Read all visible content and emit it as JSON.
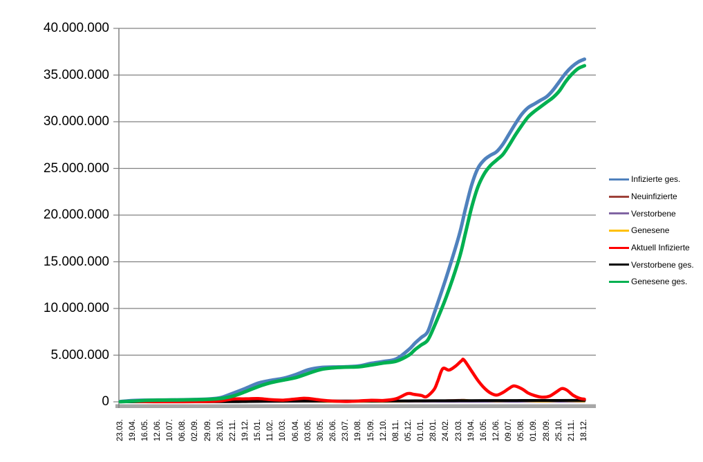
{
  "chart_data": {
    "type": "line",
    "title": "",
    "xlabel": "",
    "ylabel": "",
    "values_unit": "millions",
    "ylim": [
      0,
      40000000
    ],
    "y_tick_step": 5000000,
    "grid": true,
    "legend_position": "right",
    "y_tick_labels": [
      "40.000.000",
      "35.000.000",
      "30.000.000",
      "25.000.000",
      "20.000.000",
      "15.000.000",
      "10.000.000",
      "5.000.000",
      "0"
    ],
    "x_tick_labels": [
      "23.03.",
      "19.04.",
      "16.05.",
      "12.06.",
      "10.07.",
      "06.08.",
      "02.09.",
      "29.09.",
      "26.10.",
      "22.11.",
      "19.12.",
      "15.01.",
      "11.02.",
      "10.03.",
      "06.04.",
      "03.05.",
      "30.05.",
      "26.06.",
      "23.07.",
      "19.08.",
      "15.09.",
      "12.10.",
      "08.11.",
      "05.12.",
      "01.01.",
      "28.01.",
      "24.02.",
      "23.03.",
      "19.04.",
      "16.05.",
      "12.06.",
      "09.07.",
      "05.08.",
      "01.09.",
      "28.09.",
      "25.10.",
      "21.11.",
      "18.12."
    ],
    "series": [
      {
        "name": "Infizierte ges.",
        "color": "#4F81BD",
        "width": 5,
        "points": [
          [
            0,
            0.03
          ],
          [
            1,
            0.14
          ],
          [
            2,
            0.18
          ],
          [
            3,
            0.19
          ],
          [
            4,
            0.2
          ],
          [
            5,
            0.22
          ],
          [
            6,
            0.25
          ],
          [
            7,
            0.3
          ],
          [
            8,
            0.45
          ],
          [
            9,
            0.93
          ],
          [
            10,
            1.45
          ],
          [
            11,
            2.01
          ],
          [
            12,
            2.3
          ],
          [
            13,
            2.52
          ],
          [
            14,
            2.93
          ],
          [
            15,
            3.44
          ],
          [
            16,
            3.68
          ],
          [
            17,
            3.73
          ],
          [
            18,
            3.76
          ],
          [
            19,
            3.84
          ],
          [
            20,
            4.12
          ],
          [
            21,
            4.33
          ],
          [
            22,
            4.6
          ],
          [
            23,
            5.6
          ],
          [
            23.5,
            6.3
          ],
          [
            24,
            6.9
          ],
          [
            24.5,
            7.5
          ],
          [
            25,
            9.4
          ],
          [
            26,
            13.4
          ],
          [
            27,
            17.8
          ],
          [
            27.5,
            20.6
          ],
          [
            28,
            23.2
          ],
          [
            28.5,
            25.0
          ],
          [
            29,
            25.9
          ],
          [
            29.5,
            26.4
          ],
          [
            30,
            26.8
          ],
          [
            30.5,
            27.6
          ],
          [
            31,
            28.7
          ],
          [
            31.5,
            29.8
          ],
          [
            32,
            30.8
          ],
          [
            32.5,
            31.5
          ],
          [
            33,
            31.9
          ],
          [
            33.5,
            32.3
          ],
          [
            34,
            32.7
          ],
          [
            34.5,
            33.4
          ],
          [
            35,
            34.3
          ],
          [
            35.5,
            35.2
          ],
          [
            36,
            35.9
          ],
          [
            36.5,
            36.4
          ],
          [
            37,
            36.7
          ]
        ]
      },
      {
        "name": "Neuinfizierte",
        "color": "#9E4139",
        "width": 2.5,
        "points": [
          [
            0,
            0.004
          ],
          [
            1,
            0.004
          ],
          [
            2,
            0.001
          ],
          [
            3,
            0.001
          ],
          [
            4,
            0.001
          ],
          [
            5,
            0.001
          ],
          [
            6,
            0.002
          ],
          [
            7,
            0.005
          ],
          [
            8,
            0.015
          ],
          [
            9,
            0.022
          ],
          [
            10,
            0.027
          ],
          [
            11,
            0.02
          ],
          [
            12,
            0.01
          ],
          [
            13,
            0.012
          ],
          [
            14,
            0.02
          ],
          [
            15,
            0.018
          ],
          [
            16,
            0.007
          ],
          [
            17,
            0.002
          ],
          [
            18,
            0.002
          ],
          [
            19,
            0.005
          ],
          [
            20,
            0.01
          ],
          [
            21,
            0.009
          ],
          [
            22,
            0.03
          ],
          [
            23,
            0.06
          ],
          [
            24,
            0.045
          ],
          [
            25,
            0.1
          ],
          [
            26,
            0.18
          ],
          [
            27,
            0.21
          ],
          [
            27.4,
            0.22
          ],
          [
            28,
            0.14
          ],
          [
            29,
            0.07
          ],
          [
            30,
            0.05
          ],
          [
            31,
            0.1
          ],
          [
            32,
            0.07
          ],
          [
            33,
            0.04
          ],
          [
            34,
            0.05
          ],
          [
            35,
            0.08
          ],
          [
            36,
            0.04
          ],
          [
            37,
            0.025
          ]
        ]
      },
      {
        "name": "Verstorbene",
        "color": "#8064A2",
        "width": 2.5,
        "points": [
          [
            0,
            0.0
          ],
          [
            10,
            0.003
          ],
          [
            12,
            0.004
          ],
          [
            14,
            0.002
          ],
          [
            20,
            0.001
          ],
          [
            23,
            0.002
          ],
          [
            25,
            0.002
          ],
          [
            30,
            0.001
          ],
          [
            35,
            0.001
          ],
          [
            37,
            0.001
          ]
        ]
      },
      {
        "name": "Genesene",
        "color": "#FFC000",
        "width": 2.5,
        "points": [
          [
            0,
            0.002
          ],
          [
            1,
            0.005
          ],
          [
            2,
            0.006
          ],
          [
            3,
            0.002
          ],
          [
            4,
            0.001
          ],
          [
            5,
            0.002
          ],
          [
            6,
            0.003
          ],
          [
            7,
            0.005
          ],
          [
            8,
            0.01
          ],
          [
            9,
            0.022
          ],
          [
            10,
            0.025
          ],
          [
            11,
            0.026
          ],
          [
            12,
            0.015
          ],
          [
            13,
            0.012
          ],
          [
            14,
            0.02
          ],
          [
            15,
            0.022
          ],
          [
            16,
            0.012
          ],
          [
            17,
            0.004
          ],
          [
            18,
            0.002
          ],
          [
            19,
            0.004
          ],
          [
            20,
            0.009
          ],
          [
            21,
            0.01
          ],
          [
            22,
            0.02
          ],
          [
            23,
            0.045
          ],
          [
            24,
            0.05
          ],
          [
            25,
            0.07
          ],
          [
            26,
            0.14
          ],
          [
            27,
            0.17
          ],
          [
            27.5,
            0.19
          ],
          [
            28,
            0.16
          ],
          [
            28.5,
            0.13
          ],
          [
            29,
            0.1
          ],
          [
            30,
            0.06
          ],
          [
            31,
            0.09
          ],
          [
            31.5,
            0.1
          ],
          [
            32,
            0.09
          ],
          [
            33,
            0.05
          ],
          [
            34,
            0.04
          ],
          [
            35,
            0.09
          ],
          [
            36,
            0.07
          ],
          [
            37,
            0.04
          ]
        ]
      },
      {
        "name": "Aktuell Infizierte",
        "color": "#FF0000",
        "width": 4.5,
        "points": [
          [
            0,
            0.01
          ],
          [
            0.6,
            0.06
          ],
          [
            1,
            0.05
          ],
          [
            1.5,
            0.03
          ],
          [
            2,
            0.02
          ],
          [
            3,
            0.01
          ],
          [
            4,
            0.01
          ],
          [
            5,
            0.01
          ],
          [
            6,
            0.02
          ],
          [
            7,
            0.04
          ],
          [
            8,
            0.1
          ],
          [
            9,
            0.3
          ],
          [
            10,
            0.32
          ],
          [
            11,
            0.35
          ],
          [
            12,
            0.23
          ],
          [
            13,
            0.18
          ],
          [
            14,
            0.31
          ],
          [
            14.6,
            0.38
          ],
          [
            15,
            0.36
          ],
          [
            16,
            0.19
          ],
          [
            17,
            0.08
          ],
          [
            18,
            0.04
          ],
          [
            19,
            0.09
          ],
          [
            20,
            0.17
          ],
          [
            21,
            0.15
          ],
          [
            22,
            0.34
          ],
          [
            22.9,
            0.88
          ],
          [
            23.4,
            0.8
          ],
          [
            24,
            0.68
          ],
          [
            24.4,
            0.55
          ],
          [
            25,
            1.3
          ],
          [
            25.3,
            2.2
          ],
          [
            25.7,
            3.55
          ],
          [
            26.2,
            3.4
          ],
          [
            26.7,
            3.8
          ],
          [
            27.2,
            4.4
          ],
          [
            27.4,
            4.48
          ],
          [
            28,
            3.3
          ],
          [
            28.5,
            2.3
          ],
          [
            29,
            1.5
          ],
          [
            29.5,
            0.95
          ],
          [
            30,
            0.72
          ],
          [
            30.5,
            1.0
          ],
          [
            31,
            1.45
          ],
          [
            31.4,
            1.7
          ],
          [
            32,
            1.4
          ],
          [
            32.5,
            0.95
          ],
          [
            33,
            0.68
          ],
          [
            33.6,
            0.5
          ],
          [
            34.2,
            0.6
          ],
          [
            34.8,
            1.1
          ],
          [
            35.2,
            1.42
          ],
          [
            35.6,
            1.25
          ],
          [
            36.1,
            0.7
          ],
          [
            36.6,
            0.38
          ],
          [
            37,
            0.28
          ]
        ]
      },
      {
        "name": "Verstorbene ges.",
        "color": "#000000",
        "width": 4,
        "points": [
          [
            0,
            0.0
          ],
          [
            6,
            0.01
          ],
          [
            9,
            0.015
          ],
          [
            10,
            0.03
          ],
          [
            11,
            0.045
          ],
          [
            12,
            0.063
          ],
          [
            13,
            0.072
          ],
          [
            14,
            0.077
          ],
          [
            15,
            0.083
          ],
          [
            16,
            0.088
          ],
          [
            18,
            0.091
          ],
          [
            20,
            0.093
          ],
          [
            21,
            0.095
          ],
          [
            22,
            0.097
          ],
          [
            23,
            0.103
          ],
          [
            24,
            0.112
          ],
          [
            25,
            0.118
          ],
          [
            26,
            0.122
          ],
          [
            27,
            0.127
          ],
          [
            28,
            0.132
          ],
          [
            29,
            0.136
          ],
          [
            30,
            0.139
          ],
          [
            31,
            0.141
          ],
          [
            32,
            0.144
          ],
          [
            33,
            0.147
          ],
          [
            34,
            0.149
          ],
          [
            35,
            0.152
          ],
          [
            36,
            0.156
          ],
          [
            37,
            0.16
          ]
        ]
      },
      {
        "name": "Genesene ges.",
        "color": "#00B050",
        "width": 5,
        "points": [
          [
            0,
            0.01
          ],
          [
            1,
            0.07
          ],
          [
            2,
            0.15
          ],
          [
            3,
            0.18
          ],
          [
            4,
            0.19
          ],
          [
            5,
            0.2
          ],
          [
            6,
            0.23
          ],
          [
            7,
            0.27
          ],
          [
            8,
            0.36
          ],
          [
            9,
            0.62
          ],
          [
            10,
            1.1
          ],
          [
            11,
            1.63
          ],
          [
            12,
            2.05
          ],
          [
            13,
            2.33
          ],
          [
            14,
            2.6
          ],
          [
            15,
            3.05
          ],
          [
            16,
            3.47
          ],
          [
            17,
            3.64
          ],
          [
            18,
            3.71
          ],
          [
            19,
            3.75
          ],
          [
            20,
            3.94
          ],
          [
            21,
            4.16
          ],
          [
            22,
            4.35
          ],
          [
            23,
            5.0
          ],
          [
            23.5,
            5.6
          ],
          [
            24,
            6.1
          ],
          [
            24.5,
            6.6
          ],
          [
            25,
            8.0
          ],
          [
            26,
            11.3
          ],
          [
            27,
            15.3
          ],
          [
            27.5,
            18.0
          ],
          [
            28,
            20.8
          ],
          [
            28.5,
            23.0
          ],
          [
            29,
            24.4
          ],
          [
            29.5,
            25.3
          ],
          [
            30,
            25.9
          ],
          [
            30.5,
            26.5
          ],
          [
            31,
            27.5
          ],
          [
            31.5,
            28.6
          ],
          [
            32,
            29.6
          ],
          [
            32.5,
            30.5
          ],
          [
            33,
            31.1
          ],
          [
            33.5,
            31.6
          ],
          [
            34,
            32.1
          ],
          [
            34.5,
            32.6
          ],
          [
            35,
            33.3
          ],
          [
            35.5,
            34.3
          ],
          [
            36,
            35.1
          ],
          [
            36.5,
            35.7
          ],
          [
            37,
            36.0
          ]
        ]
      }
    ],
    "draw_order": [
      "Neuinfizierte",
      "Verstorbene",
      "Genesene",
      "Verstorbene ges.",
      "Aktuell Infizierte",
      "Infizierte ges.",
      "Genesene ges."
    ],
    "axis_colors": {
      "gridline": "#808080",
      "axis_line": "#808080",
      "x_axis_band": "#A6A6A6",
      "text": "#000000"
    }
  }
}
